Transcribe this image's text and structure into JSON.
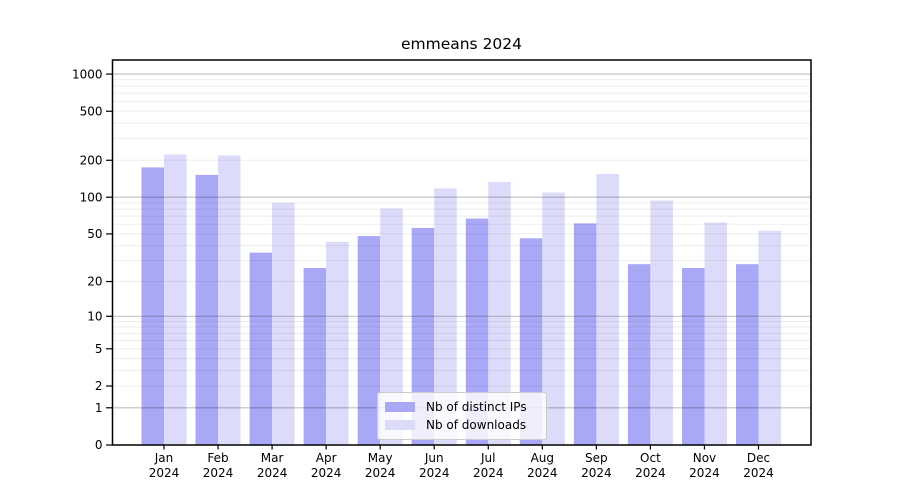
{
  "chart_data": {
    "type": "bar",
    "title": "emmeans 2024",
    "categories": [
      "Jan 2024",
      "Feb 2024",
      "Mar 2024",
      "Apr 2024",
      "May 2024",
      "Jun 2024",
      "Jul 2024",
      "Aug 2024",
      "Sep 2024",
      "Oct 2024",
      "Nov 2024",
      "Dec 2024"
    ],
    "series": [
      {
        "name": "Nb of distinct IPs",
        "color": "#a9a8f6",
        "values": [
          175,
          152,
          35,
          26,
          48,
          56,
          67,
          46,
          61,
          28,
          26,
          28
        ]
      },
      {
        "name": "Nb of downloads",
        "color": "#dcdbf9",
        "values": [
          223,
          219,
          90,
          43,
          81,
          118,
          133,
          109,
          155,
          94,
          62,
          53
        ]
      }
    ],
    "xlabel": "",
    "ylabel": "",
    "y_scale": "log1p",
    "y_ticks": [
      0,
      1,
      2,
      5,
      10,
      20,
      50,
      100,
      200,
      500,
      1000
    ],
    "ylim": [
      0,
      1300
    ],
    "grid": true,
    "legend_position": "inside-bottom-center"
  },
  "colors": {
    "axis": "#000000",
    "major_grid": "rgba(0,0,0,0.25)",
    "minor_grid": "rgba(0,0,0,0.07)",
    "legend_border": "#cccccc",
    "text": "#000000"
  }
}
